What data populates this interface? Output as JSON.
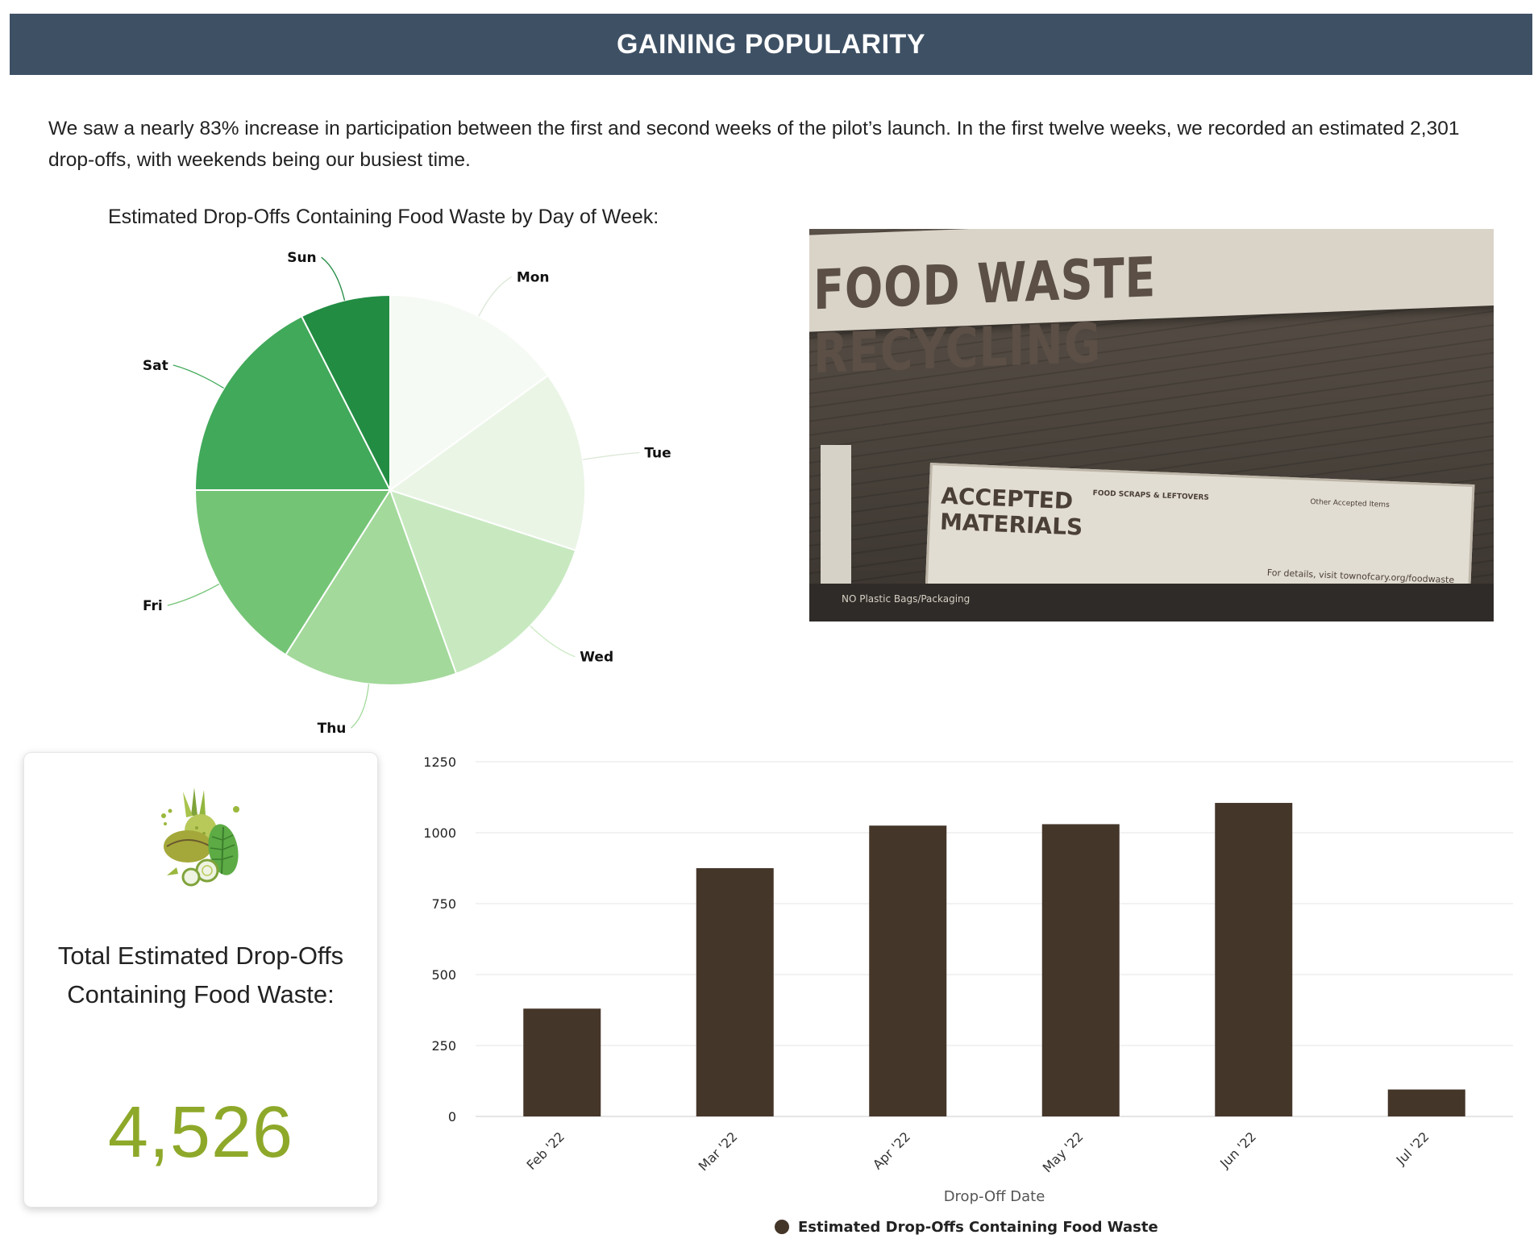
{
  "header": {
    "title": "GAINING POPULARITY"
  },
  "intro": {
    "text": "We saw a nearly 83% increase in participation between the first and second weeks of the pilot’s launch. In the first twelve weeks, we recorded an estimated 2,301 drop-offs, with weekends being our busiest time."
  },
  "photo": {
    "sign_text": "FOOD WASTE RECYCLING",
    "board_title_line1": "ACCEPTED",
    "board_title_line2": "MATERIALS",
    "board_col1_header": "FOOD SCRAPS & LEFTOVERS",
    "board_col2_header": "Other Accepted Items",
    "board_footer": "For details, visit townofcary.org/foodwaste",
    "ground_text": "NO Plastic Bags/Packaging"
  },
  "total_card": {
    "label": "Total Estimated Drop-Offs Containing Food Waste:",
    "value": "4,526",
    "icon": "vegetables-icon",
    "value_color": "#8ea92a"
  },
  "chart_data": [
    {
      "type": "pie",
      "title": "Estimated Drop-Offs Containing Food Waste by Day of Week:",
      "categories": [
        "Mon",
        "Tue",
        "Wed",
        "Thu",
        "Fri",
        "Sat",
        "Sun"
      ],
      "values": [
        15.0,
        15.0,
        14.5,
        14.5,
        16.0,
        17.5,
        7.5
      ],
      "colors": [
        "#f6faf4",
        "#eaf5e6",
        "#c8e9c0",
        "#a3d99b",
        "#74c476",
        "#41a95a",
        "#228c43"
      ],
      "start_angle_deg": 0,
      "direction": "clockwise"
    },
    {
      "type": "bar",
      "categories": [
        "Feb '22",
        "Mar '22",
        "Apr '22",
        "May '22",
        "Jun '22",
        "Jul '22"
      ],
      "values": [
        380,
        875,
        1025,
        1030,
        1105,
        95
      ],
      "xlabel": "Drop-Off Date",
      "ylabel": "",
      "ylim": [
        0,
        1250
      ],
      "yticks": [
        0,
        250,
        500,
        750,
        1000,
        1250
      ],
      "series_name": "Estimated Drop-Offs Containing Food Waste",
      "bar_color": "#45362a",
      "grid": true,
      "legend": "bottom-center"
    }
  ]
}
